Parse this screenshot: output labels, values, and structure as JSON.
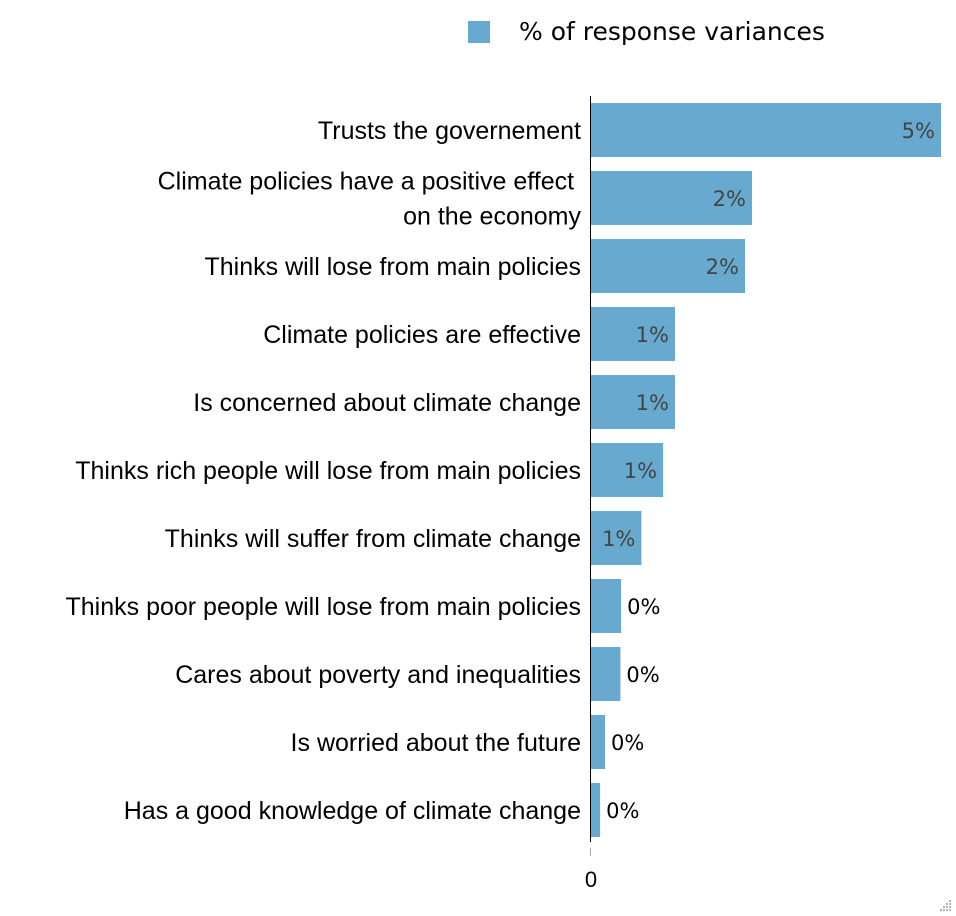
{
  "chart_data": {
    "type": "bar",
    "orientation": "horizontal",
    "categories": [
      [
        "Trusts the governement"
      ],
      [
        "Climate policies have a positive effect ",
        "on the economy"
      ],
      [
        "Thinks will lose from main policies"
      ],
      [
        "Climate policies are effective"
      ],
      [
        "Is concerned about climate change"
      ],
      [
        "Thinks rich people will lose from main policies"
      ],
      [
        "Thinks will suffer from climate change"
      ],
      [
        "Thinks poor people will lose from main policies"
      ],
      [
        "Cares about poverty and inequalities"
      ],
      [
        "Is worried about the future"
      ],
      [
        "Has a good knowledge of climate change"
      ]
    ],
    "series": [
      {
        "name": "% of response variances",
        "color": "#67a9cf",
        "values": [
          5.0,
          2.3,
          2.2,
          1.2,
          1.2,
          1.03,
          0.72,
          0.43,
          0.42,
          0.2,
          0.13
        ],
        "labels": [
          "5%",
          "2%",
          "2%",
          "1%",
          "1%",
          "1%",
          "1%",
          "0%",
          "0%",
          "0%",
          "0%"
        ]
      }
    ],
    "xlim": [
      0,
      5.0
    ],
    "x_ticks": [
      {
        "value": 0,
        "label": "0"
      }
    ],
    "legend_position": "top",
    "grid": false,
    "title": "",
    "xlabel": "",
    "ylabel": ""
  }
}
